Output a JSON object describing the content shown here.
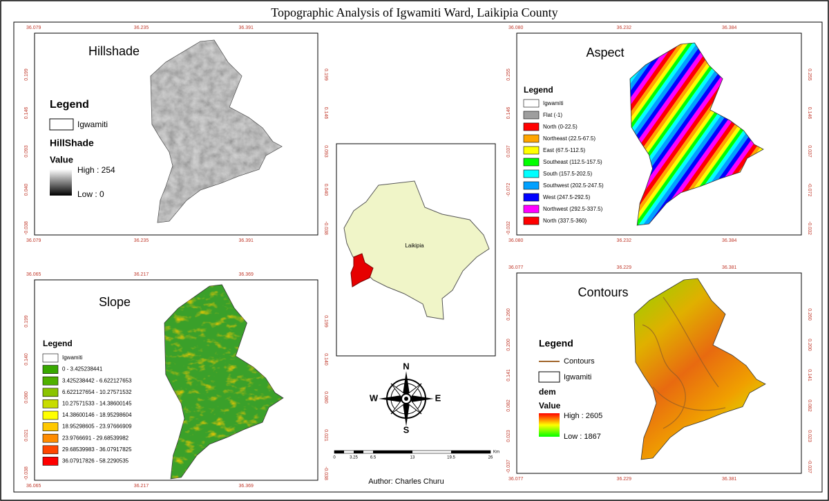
{
  "title": "Topographic Analysis of Igwamiti Ward, Laikipia County",
  "author": "Author: Charles Churu",
  "hillshade": {
    "title": "Hillshade",
    "legend": "Legend",
    "boundary": "Igwamiti",
    "layer": "HillShade",
    "value": "Value",
    "high": "High : 254",
    "low": "Low : 0",
    "xlabels": [
      "36.079",
      "36.235",
      "36.391"
    ],
    "ylabels": [
      "0.199",
      "0.146",
      "0.093",
      "0.040",
      "-0.038"
    ]
  },
  "aspect": {
    "title": "Aspect",
    "legend": "Legend",
    "items": [
      {
        "label": "Igwamiti",
        "color": "#ffffff"
      },
      {
        "label": "Flat (-1)",
        "color": "#9e9e9e"
      },
      {
        "label": "North (0-22.5)",
        "color": "#ff0000"
      },
      {
        "label": "Northeast (22.5-67.5)",
        "color": "#ffa500"
      },
      {
        "label": "East (67.5-112.5)",
        "color": "#ffff00"
      },
      {
        "label": "Southeast (112.5-157.5)",
        "color": "#00ff00"
      },
      {
        "label": "South (157.5-202.5)",
        "color": "#00ffff"
      },
      {
        "label": "Southwest (202.5-247.5)",
        "color": "#00a0ff"
      },
      {
        "label": "West (247.5-292.5)",
        "color": "#0000ff"
      },
      {
        "label": "Northwest (292.5-337.5)",
        "color": "#ff00ff"
      },
      {
        "label": "North (337.5-360)",
        "color": "#ff0000"
      }
    ],
    "xlabels": [
      "36.080",
      "36.232",
      "36.384"
    ],
    "ylabels": [
      "0.255",
      "0.146",
      "0.037",
      "-0.072",
      "-0.032"
    ]
  },
  "slope": {
    "title": "Slope",
    "legend": "Legend",
    "items": [
      {
        "label": "Igwamiti",
        "color": "#ffffff"
      },
      {
        "label": "0 - 3.425238441",
        "color": "#38a800"
      },
      {
        "label": "3.425238442 - 6.622127653",
        "color": "#4fb000"
      },
      {
        "label": "6.622127654 - 10.27571532",
        "color": "#8bc400"
      },
      {
        "label": "10.27571533 - 14.38600145",
        "color": "#c8dc00"
      },
      {
        "label": "14.38600146 - 18.95298604",
        "color": "#ffff00"
      },
      {
        "label": "18.95298605 - 23.97666909",
        "color": "#ffc800"
      },
      {
        "label": "23.9766691 - 29.68539982",
        "color": "#ff8c00"
      },
      {
        "label": "29.68539983 - 36.07917825",
        "color": "#ff4600"
      },
      {
        "label": "36.07917826 - 58.2290535",
        "color": "#ff0000"
      }
    ],
    "xlabels": [
      "36.065",
      "36.217",
      "36.369"
    ],
    "ylabels": [
      "0.199",
      "0.140",
      "0.080",
      "0.021",
      "-0.038"
    ]
  },
  "contours": {
    "title": "Contours",
    "legend": "Legend",
    "contours": "Contours",
    "boundary": "Igwamiti",
    "layer": "dem",
    "value": "Value",
    "high": "High : 2605",
    "low": "Low : 1867",
    "xlabels": [
      "36.077",
      "36.229",
      "36.381"
    ],
    "ylabels": [
      "0.260",
      "0.200",
      "0.141",
      "0.082",
      "0.023",
      "-0.037"
    ]
  },
  "locator": {
    "label": "Laikipia"
  },
  "north": {
    "n": "N",
    "s": "S",
    "e": "E",
    "w": "W"
  },
  "scale": {
    "labels": [
      "0",
      "3.25",
      "6.5",
      "13",
      "19.5",
      "26"
    ],
    "unit": "Km"
  }
}
